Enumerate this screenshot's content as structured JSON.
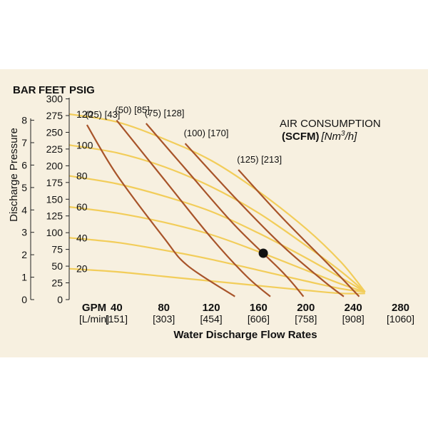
{
  "chart_data": {
    "type": "line",
    "unit_headers": {
      "bar": "BAR",
      "feet": "FEET",
      "psig": "PSIG"
    },
    "ylabel": "Discharge Pressure",
    "xlabel": "Water Discharge Flow Rates",
    "y_bar_ticks": [
      "0",
      "1",
      "2",
      "3",
      "4",
      "5",
      "6",
      "7",
      "8"
    ],
    "y_feet_ticks": [
      "0",
      "25",
      "50",
      "75",
      "100",
      "125",
      "150",
      "175",
      "200",
      "225",
      "250",
      "275",
      "300"
    ],
    "y_psig_ticks": [
      "20",
      "40",
      "60",
      "80",
      "100",
      "120"
    ],
    "x_ticks": [
      {
        "gpm": "GPM",
        "lmin": "[L/min]"
      },
      {
        "gpm": "40",
        "lmin": "[151]"
      },
      {
        "gpm": "80",
        "lmin": "[303]"
      },
      {
        "gpm": "120",
        "lmin": "[454]"
      },
      {
        "gpm": "160",
        "lmin": "[606]"
      },
      {
        "gpm": "200",
        "lmin": "[758]"
      },
      {
        "gpm": "240",
        "lmin": "[908]"
      },
      {
        "gpm": "280",
        "lmin": "[1060]"
      }
    ],
    "xlim": [
      0,
      280
    ],
    "ylim_psig": [
      0,
      130
    ],
    "legend": {
      "line1": "AIR CONSUMPTION",
      "line2_bold": "(SCFM)",
      "line2_italic_pre": "[Nm",
      "line2_sup": "3",
      "line2_italic_post": "/h]"
    },
    "pressure_curves": {
      "color": "#f2cd5a",
      "series": [
        {
          "values": [
            [
              0,
              120
            ],
            [
              40,
              115
            ],
            [
              80,
              104
            ],
            [
              120,
              90
            ],
            [
              160,
              70
            ],
            [
              200,
              46
            ],
            [
              230,
              24
            ],
            [
              250,
              5
            ]
          ]
        },
        {
          "values": [
            [
              0,
              100
            ],
            [
              40,
              95
            ],
            [
              80,
              86
            ],
            [
              120,
              73
            ],
            [
              160,
              56
            ],
            [
              200,
              35
            ],
            [
              230,
              18
            ],
            [
              250,
              5
            ]
          ]
        },
        {
          "values": [
            [
              0,
              80
            ],
            [
              40,
              75
            ],
            [
              80,
              67
            ],
            [
              120,
              57
            ],
            [
              160,
              43
            ],
            [
              200,
              27
            ],
            [
              230,
              14
            ],
            [
              250,
              5
            ]
          ]
        },
        {
          "values": [
            [
              0,
              60
            ],
            [
              40,
              56
            ],
            [
              80,
              50
            ],
            [
              120,
              42
            ],
            [
              160,
              31
            ],
            [
              200,
              19
            ],
            [
              230,
              10
            ],
            [
              250,
              5
            ]
          ]
        },
        {
          "values": [
            [
              0,
              40
            ],
            [
              40,
              37
            ],
            [
              80,
              32
            ],
            [
              120,
              26
            ],
            [
              160,
              19
            ],
            [
              200,
              12
            ],
            [
              230,
              7
            ],
            [
              250,
              5
            ]
          ]
        },
        {
          "values": [
            [
              0,
              20
            ],
            [
              40,
              18
            ],
            [
              80,
              15
            ],
            [
              120,
              12
            ],
            [
              160,
              9
            ],
            [
              200,
              6
            ],
            [
              230,
              4
            ],
            [
              250,
              4
            ]
          ]
        }
      ]
    },
    "air_curves": {
      "color": "#a8542a",
      "series": [
        {
          "label": "(25) [43]",
          "values": [
            [
              15,
              113
            ],
            [
              40,
              81
            ],
            [
              80,
              40
            ],
            [
              100,
              22
            ],
            [
              140,
              2
            ]
          ]
        },
        {
          "label": "(50) [85]",
          "values": [
            [
              40,
              116
            ],
            [
              80,
              78
            ],
            [
              120,
              40
            ],
            [
              150,
              15
            ],
            [
              170,
              2
            ]
          ]
        },
        {
          "label": "(75) [128]",
          "values": [
            [
              65,
              114
            ],
            [
              100,
              83
            ],
            [
              140,
              48
            ],
            [
              180,
              18
            ],
            [
              198,
              2
            ]
          ]
        },
        {
          "label": "(100) [170]",
          "values": [
            [
              98,
              101
            ],
            [
              140,
              66
            ],
            [
              180,
              35
            ],
            [
              215,
              12
            ],
            [
              232,
              2
            ]
          ]
        },
        {
          "label": "(125) [213]",
          "values": [
            [
              143,
              84
            ],
            [
              180,
              53
            ],
            [
              220,
              22
            ],
            [
              245,
              2
            ]
          ]
        }
      ]
    },
    "marker": {
      "x": 164,
      "y": 30
    }
  }
}
